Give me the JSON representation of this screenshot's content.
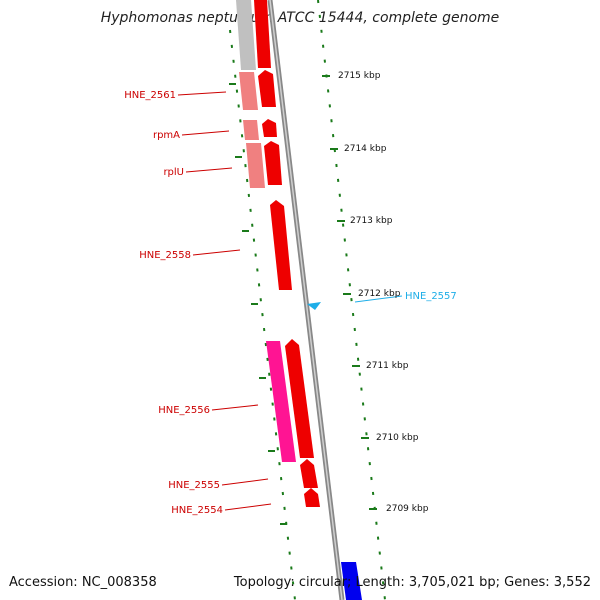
{
  "title": "Hyphomonas neptunium ATCC 15444, complete genome",
  "footer": {
    "accession": "Accession: NC_008358",
    "summary": "Topology: circular; Length: 3,705,021 bp; Genes: 3,552"
  },
  "colors": {
    "gene": "#ee0000",
    "gene_pink": "#ff1493",
    "gene_light": "#f08080",
    "gene_grey": "#c0c0c0",
    "gene_blue": "#0000ee",
    "label_red": "#cc0000",
    "label_cyan": "#1eaee8",
    "tick_green": "#1a7a1a",
    "backbone": "#888888"
  },
  "scale_ticks": [
    "2715 kbp",
    "2714 kbp",
    "2713 kbp",
    "2712 kbp",
    "2711 kbp",
    "2710 kbp",
    "2709 kbp"
  ],
  "gene_labels": [
    "HNE_2561",
    "rpmA",
    "rplU",
    "HNE_2558",
    "HNE_2557",
    "HNE_2556",
    "HNE_2555",
    "HNE_2554"
  ]
}
